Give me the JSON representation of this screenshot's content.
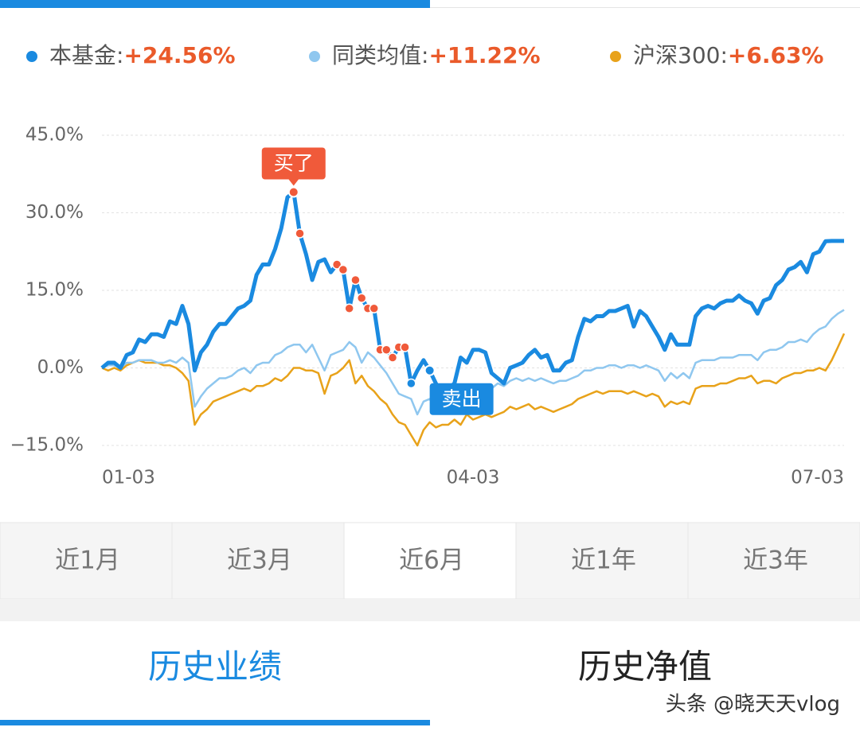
{
  "chart_data": {
    "type": "line",
    "categories": [
      "01-03",
      null,
      null,
      null,
      null,
      null,
      null,
      null,
      null,
      null,
      null,
      null,
      null,
      null,
      null,
      null,
      null,
      null,
      null,
      null,
      null,
      null,
      null,
      null,
      null,
      null,
      null,
      null,
      null,
      null,
      null,
      null,
      null,
      null,
      null,
      null,
      null,
      null,
      null,
      null,
      null,
      null,
      null,
      null,
      null,
      null,
      null,
      null,
      null,
      null,
      null,
      null,
      null,
      null,
      null,
      null,
      null,
      null,
      null,
      null,
      "04-03",
      null,
      null,
      null,
      null,
      null,
      null,
      null,
      null,
      null,
      null,
      null,
      null,
      null,
      null,
      null,
      null,
      null,
      null,
      null,
      null,
      null,
      null,
      null,
      null,
      null,
      null,
      null,
      null,
      null,
      null,
      null,
      null,
      null,
      null,
      null,
      null,
      null,
      null,
      null,
      null,
      null,
      null,
      null,
      null,
      null,
      null,
      null,
      null,
      null,
      null,
      null,
      null,
      null,
      null,
      null,
      null,
      null,
      null,
      null,
      "07-03"
    ],
    "series": [
      {
        "name": "本基金:",
        "summary_label": "+24.56%",
        "color": "#1a8ae0",
        "width": 5,
        "values": [
          0,
          1,
          1,
          0,
          2.5,
          3,
          5.5,
          5,
          6.5,
          6.5,
          6,
          9,
          8.5,
          12,
          8.5,
          -0.5,
          3,
          4.5,
          7,
          8.5,
          8.5,
          10,
          11.5,
          12,
          13,
          18,
          20,
          20,
          23,
          27,
          33,
          34,
          26,
          22,
          17,
          20.5,
          21,
          18.5,
          20,
          19,
          11.5,
          17,
          13.5,
          11.5,
          11.5,
          3.5,
          3.5,
          2,
          4,
          4,
          -3,
          -0.5,
          1.5,
          -0.5,
          -3,
          -5,
          -4,
          -3,
          2,
          1,
          3.5,
          3.5,
          3,
          -1,
          -2,
          -3,
          0,
          0.5,
          1,
          2.5,
          3.5,
          2,
          2.5,
          -0.5,
          -0.5,
          1,
          1.5,
          6,
          9.5,
          9,
          10,
          10,
          11,
          11,
          11.5,
          12,
          8,
          11,
          10,
          8,
          6,
          3.5,
          6.5,
          4.5,
          4.5,
          4.5,
          10,
          11.5,
          12,
          11.5,
          12.5,
          13,
          13,
          14,
          13,
          12.5,
          10.5,
          13,
          13.5,
          16,
          17,
          19,
          19.5,
          20.5,
          18.5,
          22,
          22.5,
          24.5,
          24.56,
          24.56,
          24.56
        ]
      },
      {
        "name": "同类均值:",
        "summary_label": "+11.22%",
        "color": "#8fc7ef",
        "width": 2.5,
        "values": [
          0,
          0.5,
          0.5,
          0,
          1,
          1,
          1.5,
          1.5,
          1.5,
          1,
          1,
          1.5,
          1,
          2,
          1,
          -7.5,
          -5.5,
          -4,
          -3,
          -2,
          -2,
          -1.5,
          -0.5,
          0,
          -1,
          0.5,
          1,
          1,
          2.5,
          3,
          4,
          4.5,
          4.5,
          3,
          4.5,
          2,
          -0.5,
          2.5,
          3,
          3.5,
          5,
          4,
          1,
          3,
          2,
          0.5,
          -1,
          -3,
          -5,
          -5.5,
          -6,
          -9,
          -6.5,
          -6,
          -7.5,
          -5,
          -4,
          -4.5,
          -3.5,
          -4,
          -5,
          -4.5,
          -5,
          -4,
          -3,
          -3.5,
          -2.5,
          -2,
          -2.5,
          -2,
          -2.5,
          -2,
          -2.5,
          -3,
          -2.5,
          -2.5,
          -2,
          -1.5,
          -0.5,
          -0.5,
          0,
          0,
          0.5,
          0.5,
          0,
          0.5,
          0.5,
          0,
          0.5,
          0,
          -0.5,
          -2.5,
          -1,
          -2,
          -1,
          -2,
          1,
          1.5,
          1.5,
          1.5,
          2,
          2,
          2,
          2.5,
          2.5,
          2.5,
          1.5,
          3,
          3.5,
          3.5,
          4,
          5,
          5,
          5.5,
          5,
          6.5,
          7.5,
          8,
          9.5,
          10.5,
          11.22
        ]
      },
      {
        "name": "沪深300:",
        "summary_label": "+6.63%",
        "color": "#e8a21a",
        "width": 2.5,
        "values": [
          0,
          -0.5,
          0,
          -0.5,
          0.5,
          1,
          1.5,
          1,
          1,
          1,
          0.5,
          0.5,
          0,
          -1,
          -2.5,
          -11,
          -9,
          -8,
          -6.5,
          -6,
          -5.5,
          -5,
          -4.5,
          -4,
          -4.5,
          -3.5,
          -3.5,
          -3,
          -2,
          -2.5,
          -1.5,
          0,
          0,
          -0.5,
          -0.5,
          -1,
          -5,
          -1.5,
          -1,
          0,
          1.5,
          -3,
          -1.5,
          -3.5,
          -4.5,
          -6,
          -7,
          -9,
          -10.5,
          -11,
          -13,
          -15,
          -12,
          -10.5,
          -11.5,
          -11,
          -11,
          -10,
          -11,
          -9,
          -10,
          -9.5,
          -9,
          -9.5,
          -9,
          -8.5,
          -7.5,
          -8,
          -7.5,
          -7,
          -8,
          -7.5,
          -8,
          -8.5,
          -8,
          -7.5,
          -7,
          -6,
          -5.5,
          -5,
          -4.5,
          -5,
          -4.5,
          -4.5,
          -4.5,
          -5,
          -4.5,
          -5,
          -5.5,
          -5,
          -5.5,
          -7.5,
          -6.5,
          -7,
          -6.5,
          -7,
          -4,
          -3.5,
          -3.5,
          -3.5,
          -3,
          -3,
          -2.5,
          -2,
          -2,
          -1.5,
          -3,
          -2.5,
          -2.5,
          -3,
          -2,
          -1.5,
          -1,
          -1,
          -0.5,
          -0.5,
          0,
          -0.5,
          1.5,
          4,
          6.63
        ]
      }
    ],
    "summary_color": "#ea5a2a",
    "buy_points": [
      31,
      32,
      38,
      39,
      40,
      41,
      42,
      43,
      44,
      45,
      46,
      47,
      48,
      49
    ],
    "sell_points": [
      50,
      53
    ],
    "annotations": [
      {
        "text": "买了",
        "point": 31,
        "color": "#f05a3a"
      },
      {
        "text": "卖出",
        "point": 53,
        "color": "#1a8ae0"
      }
    ],
    "ylim": [
      -15,
      45
    ],
    "yticks": [
      {
        "value": -15,
        "label": "−15.0%"
      },
      {
        "value": 0,
        "label": "0.0%"
      },
      {
        "value": 15,
        "label": "15.0%"
      },
      {
        "value": 30,
        "label": "30.0%"
      },
      {
        "value": 45,
        "label": "45.0%"
      }
    ],
    "grid": true
  },
  "range_tabs": {
    "items": [
      "近1月",
      "近3月",
      "近6月",
      "近1年",
      "近3年"
    ],
    "selected": 2
  },
  "bottom_tabs": {
    "items": [
      "历史业绩",
      "历史净值"
    ],
    "selected": 0
  },
  "watermark": "头条 @晓天天vlog"
}
